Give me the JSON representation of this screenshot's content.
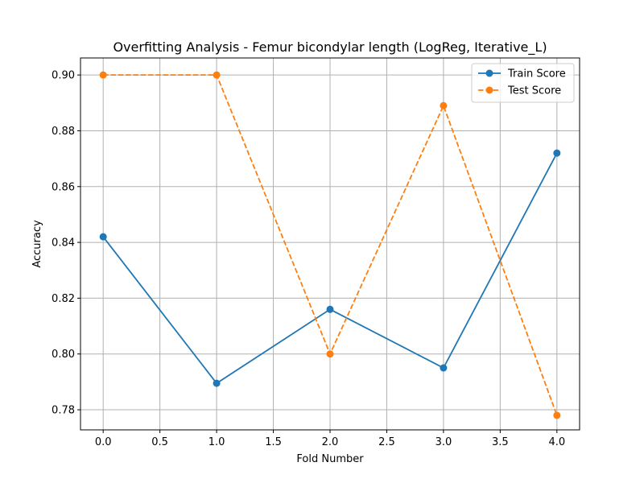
{
  "chart_data": {
    "type": "line",
    "title": "Overfitting Analysis - Femur bicondylar length (LogReg, Iterative_L)",
    "xlabel": "Fold Number",
    "ylabel": "Accuracy",
    "xlim": [
      -0.2,
      4.2
    ],
    "ylim": [
      0.7728,
      0.9061
    ],
    "x_ticks": [
      0.0,
      0.5,
      1.0,
      1.5,
      2.0,
      2.5,
      3.0,
      3.5,
      4.0
    ],
    "x_tick_labels": [
      "0.0",
      "0.5",
      "1.0",
      "1.5",
      "2.0",
      "2.5",
      "3.0",
      "3.5",
      "4.0"
    ],
    "y_ticks": [
      0.78,
      0.8,
      0.82,
      0.84,
      0.86,
      0.88,
      0.9
    ],
    "y_tick_labels": [
      "0.78",
      "0.80",
      "0.82",
      "0.84",
      "0.86",
      "0.88",
      "0.90"
    ],
    "grid": true,
    "legend_position": "top-right",
    "x": [
      0,
      1,
      2,
      3,
      4
    ],
    "series": [
      {
        "name": "Train Score",
        "values": [
          0.842,
          0.7895,
          0.816,
          0.795,
          0.872
        ],
        "color": "#1f77b4",
        "line_style": "solid",
        "marker": "circle"
      },
      {
        "name": "Test Score",
        "values": [
          0.9,
          0.9,
          0.8,
          0.889,
          0.778
        ],
        "color": "#ff7f0e",
        "line_style": "dashed",
        "marker": "circle"
      }
    ]
  }
}
